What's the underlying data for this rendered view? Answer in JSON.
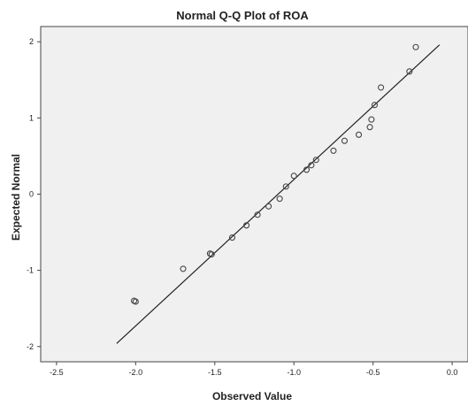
{
  "chart_data": {
    "type": "scatter",
    "title": "Normal Q-Q Plot of ROA",
    "xlabel": "Observed Value",
    "ylabel": "Expected Normal",
    "xlim": [
      -2.6,
      0.1
    ],
    "ylim": [
      -2.2,
      2.2
    ],
    "x_ticks": [
      -2.5,
      -2.0,
      -1.5,
      -1.0,
      -0.5,
      0.0
    ],
    "x_tick_labels": [
      "-2.5",
      "-2.0",
      "-1.5",
      "-1.0",
      "-0.5",
      "0.0"
    ],
    "y_ticks": [
      2,
      1,
      0,
      -1,
      -2
    ],
    "y_tick_labels": [
      "2",
      "1",
      "0",
      "-1",
      "-2"
    ],
    "grid": false,
    "plot_background": "#f0f0f0",
    "point_color": "#444444",
    "line_color": "#222222",
    "reference_line": {
      "x": [
        -2.12,
        -0.08
      ],
      "y": [
        -1.96,
        1.96
      ]
    },
    "points": [
      {
        "x": -2.01,
        "y": -1.4
      },
      {
        "x": -2.0,
        "y": -1.41
      },
      {
        "x": -1.7,
        "y": -0.98
      },
      {
        "x": -1.53,
        "y": -0.78
      },
      {
        "x": -1.52,
        "y": -0.79
      },
      {
        "x": -1.39,
        "y": -0.57
      },
      {
        "x": -1.3,
        "y": -0.41
      },
      {
        "x": -1.23,
        "y": -0.27
      },
      {
        "x": -1.16,
        "y": -0.16
      },
      {
        "x": -1.09,
        "y": -0.06
      },
      {
        "x": -1.05,
        "y": 0.1
      },
      {
        "x": -1.0,
        "y": 0.24
      },
      {
        "x": -0.92,
        "y": 0.32
      },
      {
        "x": -0.89,
        "y": 0.38
      },
      {
        "x": -0.86,
        "y": 0.45
      },
      {
        "x": -0.75,
        "y": 0.57
      },
      {
        "x": -0.68,
        "y": 0.7
      },
      {
        "x": -0.59,
        "y": 0.78
      },
      {
        "x": -0.52,
        "y": 0.88
      },
      {
        "x": -0.51,
        "y": 0.98
      },
      {
        "x": -0.49,
        "y": 1.17
      },
      {
        "x": -0.45,
        "y": 1.4
      },
      {
        "x": -0.27,
        "y": 1.61
      },
      {
        "x": -0.23,
        "y": 1.93
      }
    ]
  }
}
